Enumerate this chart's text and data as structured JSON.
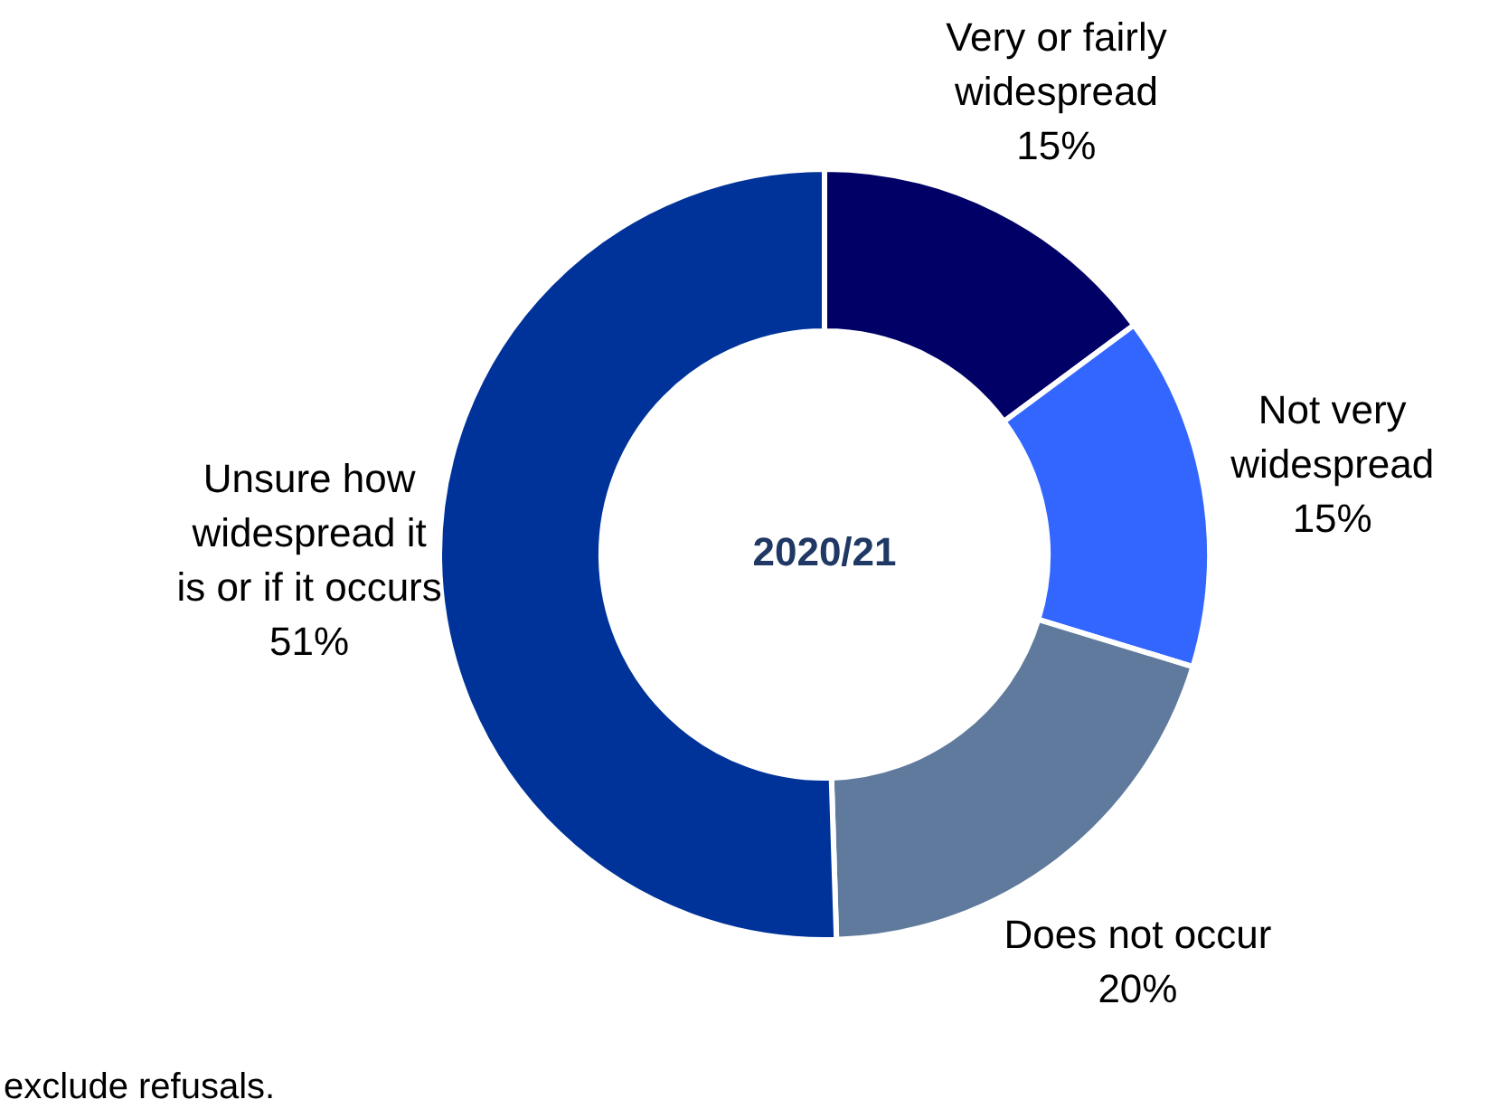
{
  "chart_data": {
    "type": "donut",
    "title": "2020/21",
    "categories": [
      "Very or fairly widespread",
      "Not very widespread",
      "Does not occur",
      "Unsure how widespread it is or if it occurs"
    ],
    "values": [
      15,
      15,
      20,
      51
    ],
    "colors": [
      "#000066",
      "#3366ff",
      "#5f7a9c",
      "#003399"
    ],
    "value_labels": [
      "15%",
      "15%",
      "20%",
      "51%"
    ],
    "legend": false,
    "annotations": [
      "exclude refusals."
    ]
  }
}
